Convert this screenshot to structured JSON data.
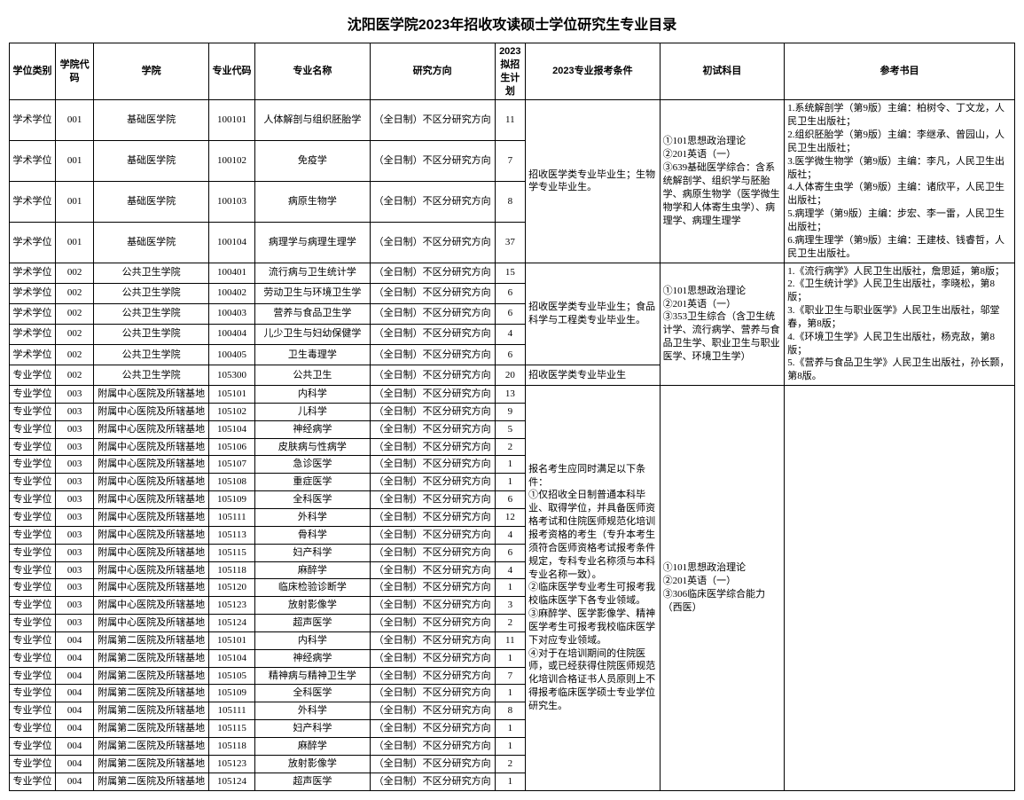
{
  "title": "沈阳医学院2023年招收攻读硕士学位研究生专业目录",
  "headers": {
    "type": "学位类别",
    "dcode": "学院代码",
    "dept": "学院",
    "mcode": "专业代码",
    "major": "专业名称",
    "direction": "研究方向",
    "plan": "2023拟招生计划",
    "condition": "2023专业报考条件",
    "exam": "初试科目",
    "ref": "参考书目"
  },
  "direction_text": "（全日制）不区分研究方向",
  "g1_rows": [
    {
      "type": "学术学位",
      "dcode": "001",
      "dept": "基础医学院",
      "mcode": "100101",
      "major": "人体解剖与组织胚胎学",
      "plan": "11"
    },
    {
      "type": "学术学位",
      "dcode": "001",
      "dept": "基础医学院",
      "mcode": "100102",
      "major": "免疫学",
      "plan": "7"
    },
    {
      "type": "学术学位",
      "dcode": "001",
      "dept": "基础医学院",
      "mcode": "100103",
      "major": "病原生物学",
      "plan": "8"
    },
    {
      "type": "学术学位",
      "dcode": "001",
      "dept": "基础医学院",
      "mcode": "100104",
      "major": "病理学与病理生理学",
      "plan": "37"
    }
  ],
  "g1_cond": "招收医学类专业毕业生；生物学专业毕业生。",
  "g1_exam": "①101思想政治理论\n②201英语（一）\n③639基础医学综合：含系统解剖学、组织学与胚胎学、病原生物学（医学微生物学和人体寄生虫学）、病理学、病理生理学",
  "g1_ref": "1.系统解剖学（第9版）主编：柏树令、丁文龙，人民卫生出版社；\n2.组织胚胎学（第9版）主编：李继承、曾园山，人民卫生出版社；\n3.医学微生物学（第9版）主编：李凡，人民卫生出版社；\n4.人体寄生虫学（第9版）主编：诸欣平，人民卫生出版社；\n5.病理学（第9版）主编：步宏、李一雷，人民卫生出版社；\n6.病理生理学（第9版）主编：王建枝、钱睿哲，人民卫生出版社。",
  "g2_rows": [
    {
      "type": "学术学位",
      "dcode": "002",
      "dept": "公共卫生学院",
      "mcode": "100401",
      "major": "流行病与卫生统计学",
      "plan": "15"
    },
    {
      "type": "学术学位",
      "dcode": "002",
      "dept": "公共卫生学院",
      "mcode": "100402",
      "major": "劳动卫生与环境卫生学",
      "plan": "6"
    },
    {
      "type": "学术学位",
      "dcode": "002",
      "dept": "公共卫生学院",
      "mcode": "100403",
      "major": "营养与食品卫生学",
      "plan": "6"
    },
    {
      "type": "学术学位",
      "dcode": "002",
      "dept": "公共卫生学院",
      "mcode": "100404",
      "major": "儿少卫生与妇幼保健学",
      "plan": "4"
    },
    {
      "type": "学术学位",
      "dcode": "002",
      "dept": "公共卫生学院",
      "mcode": "100405",
      "major": "卫生毒理学",
      "plan": "6"
    }
  ],
  "g2_cond": "招收医学类专业毕业生；食品科学与工程类专业毕业生。",
  "g2_exam": "①101思想政治理论\n②201英语（一）\n③353卫生综合（含卫生统计学、流行病学、营养与食品卫生学、职业卫生与职业医学、环境卫生学）",
  "g2_ref": "1.《流行病学》人民卫生出版社，詹思延，第8版；\n2.《卫生统计学》人民卫生出版社，李晓松，第8版；\n3.《职业卫生与职业医学》人民卫生出版社，邬堂春，第8版；\n4.《环境卫生学》人民卫生出版社，杨克敌，第8版；\n5.《营养与食品卫生学》人民卫生出版社，孙长颢，第8版。",
  "g2b_row": {
    "type": "专业学位",
    "dcode": "002",
    "dept": "公共卫生学院",
    "mcode": "105300",
    "major": "公共卫生",
    "plan": "20"
  },
  "g2b_cond": "招收医学类专业毕业生",
  "g3_rows": [
    {
      "type": "专业学位",
      "dcode": "003",
      "dept": "附属中心医院及所辖基地",
      "mcode": "105101",
      "major": "内科学",
      "plan": "13"
    },
    {
      "type": "专业学位",
      "dcode": "003",
      "dept": "附属中心医院及所辖基地",
      "mcode": "105102",
      "major": "儿科学",
      "plan": "9"
    },
    {
      "type": "专业学位",
      "dcode": "003",
      "dept": "附属中心医院及所辖基地",
      "mcode": "105104",
      "major": "神经病学",
      "plan": "5"
    },
    {
      "type": "专业学位",
      "dcode": "003",
      "dept": "附属中心医院及所辖基地",
      "mcode": "105106",
      "major": "皮肤病与性病学",
      "plan": "2"
    },
    {
      "type": "专业学位",
      "dcode": "003",
      "dept": "附属中心医院及所辖基地",
      "mcode": "105107",
      "major": "急诊医学",
      "plan": "1"
    },
    {
      "type": "专业学位",
      "dcode": "003",
      "dept": "附属中心医院及所辖基地",
      "mcode": "105108",
      "major": "重症医学",
      "plan": "1"
    },
    {
      "type": "专业学位",
      "dcode": "003",
      "dept": "附属中心医院及所辖基地",
      "mcode": "105109",
      "major": "全科医学",
      "plan": "6"
    },
    {
      "type": "专业学位",
      "dcode": "003",
      "dept": "附属中心医院及所辖基地",
      "mcode": "105111",
      "major": "外科学",
      "plan": "12"
    },
    {
      "type": "专业学位",
      "dcode": "003",
      "dept": "附属中心医院及所辖基地",
      "mcode": "105113",
      "major": "骨科学",
      "plan": "4"
    },
    {
      "type": "专业学位",
      "dcode": "003",
      "dept": "附属中心医院及所辖基地",
      "mcode": "105115",
      "major": "妇产科学",
      "plan": "6"
    },
    {
      "type": "专业学位",
      "dcode": "003",
      "dept": "附属中心医院及所辖基地",
      "mcode": "105118",
      "major": "麻醉学",
      "plan": "4"
    },
    {
      "type": "专业学位",
      "dcode": "003",
      "dept": "附属中心医院及所辖基地",
      "mcode": "105120",
      "major": "临床检验诊断学",
      "plan": "1"
    },
    {
      "type": "专业学位",
      "dcode": "003",
      "dept": "附属中心医院及所辖基地",
      "mcode": "105123",
      "major": "放射影像学",
      "plan": "3"
    },
    {
      "type": "专业学位",
      "dcode": "003",
      "dept": "附属中心医院及所辖基地",
      "mcode": "105124",
      "major": "超声医学",
      "plan": "2"
    },
    {
      "type": "专业学位",
      "dcode": "004",
      "dept": "附属第二医院及所辖基地",
      "mcode": "105101",
      "major": "内科学",
      "plan": "11"
    },
    {
      "type": "专业学位",
      "dcode": "004",
      "dept": "附属第二医院及所辖基地",
      "mcode": "105104",
      "major": "神经病学",
      "plan": "1"
    },
    {
      "type": "专业学位",
      "dcode": "004",
      "dept": "附属第二医院及所辖基地",
      "mcode": "105105",
      "major": "精神病与精神卫生学",
      "plan": "7"
    },
    {
      "type": "专业学位",
      "dcode": "004",
      "dept": "附属第二医院及所辖基地",
      "mcode": "105109",
      "major": "全科医学",
      "plan": "1"
    },
    {
      "type": "专业学位",
      "dcode": "004",
      "dept": "附属第二医院及所辖基地",
      "mcode": "105111",
      "major": "外科学",
      "plan": "8"
    },
    {
      "type": "专业学位",
      "dcode": "004",
      "dept": "附属第二医院及所辖基地",
      "mcode": "105115",
      "major": "妇产科学",
      "plan": "1"
    },
    {
      "type": "专业学位",
      "dcode": "004",
      "dept": "附属第二医院及所辖基地",
      "mcode": "105118",
      "major": "麻醉学",
      "plan": "1"
    },
    {
      "type": "专业学位",
      "dcode": "004",
      "dept": "附属第二医院及所辖基地",
      "mcode": "105123",
      "major": "放射影像学",
      "plan": "2"
    },
    {
      "type": "专业学位",
      "dcode": "004",
      "dept": "附属第二医院及所辖基地",
      "mcode": "105124",
      "major": "超声医学",
      "plan": "1"
    }
  ],
  "g3_cond": "报名考生应同时满足以下条件：\n①仅招收全日制普通本科毕业、取得学位，并具备医师资格考试和住院医师规范化培训报考资格的考生（专升本考生须符合医师资格考试报考条件规定，专科专业名称须与本科专业名称一致）。\n②临床医学专业考生可报考我校临床医学下各专业领域。\n③麻醉学、医学影像学、精神医学考生可报考我校临床医学下对应专业领域。\n④对于在培训期间的住院医师，或已经获得住院医师规范化培训合格证书人员原则上不得报考临床医学硕士专业学位研究生。",
  "g3_exam": "①101思想政治理论\n②201英语（一）\n③306临床医学综合能力（西医）",
  "g3_ref": ""
}
